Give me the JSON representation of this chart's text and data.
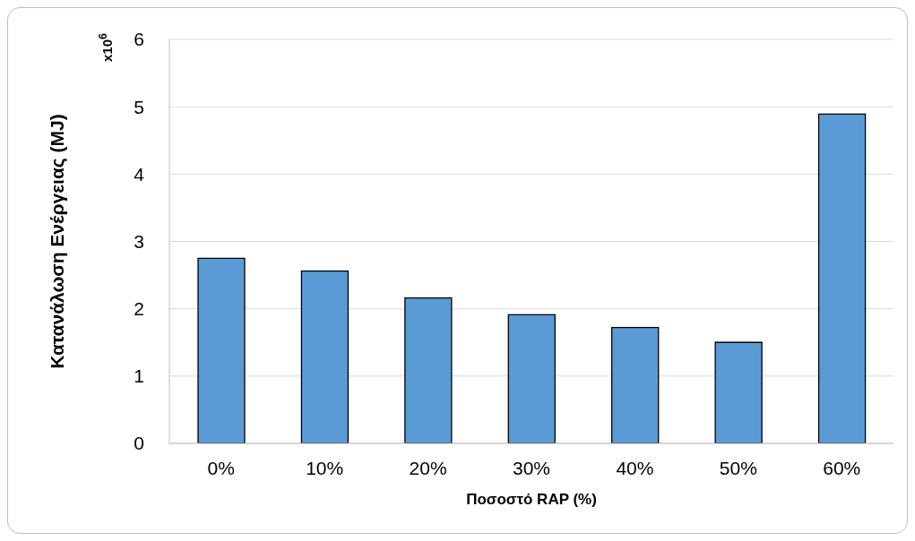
{
  "chart_data": {
    "type": "bar",
    "xlabel": "Ποσοστό RAP (%)",
    "ylabel": "Κατανάλωση Ενέργειας (MJ)",
    "annotations": [
      "x10$^{6}$"
    ],
    "categories": [
      "0%",
      "10%",
      "20%",
      "30%",
      "40%",
      "50%",
      "60%"
    ],
    "values": [
      2.75,
      2.56,
      2.16,
      1.91,
      1.72,
      1.5,
      4.89
    ],
    "color": "#5b9bd5",
    "ylim": [
      0,
      6
    ],
    "yticks": [
      0,
      1,
      2,
      3,
      4,
      5,
      6
    ],
    "grid": "y"
  }
}
